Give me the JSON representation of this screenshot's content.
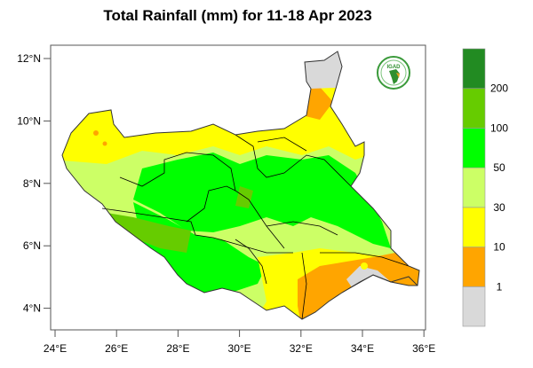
{
  "title": "Total Rainfall (mm) for 11-18 Apr 2023",
  "logo_text": "IGAD",
  "y_ticks": [
    {
      "lat": 12,
      "label": "12°N"
    },
    {
      "lat": 10,
      "label": "10°N"
    },
    {
      "lat": 8,
      "label": "8°N"
    },
    {
      "lat": 6,
      "label": "6°N"
    },
    {
      "lat": 4,
      "label": "4°N"
    }
  ],
  "x_ticks": [
    {
      "lon": 24,
      "label": "24°E"
    },
    {
      "lon": 26,
      "label": "26°E"
    },
    {
      "lon": 28,
      "label": "28°E"
    },
    {
      "lon": 30,
      "label": "30°E"
    },
    {
      "lon": 32,
      "label": "32°E"
    },
    {
      "lon": 34,
      "label": "34°E"
    },
    {
      "lon": 36,
      "label": "36°E"
    }
  ],
  "legend": {
    "colors": [
      "#d9d9d9",
      "#ffa500",
      "#ffff00",
      "#ccff66",
      "#00ff00",
      "#66cc00",
      "#228b22"
    ],
    "labels": [
      "1",
      "10",
      "30",
      "50",
      "100",
      "200"
    ]
  },
  "colors": {
    "no_data": "#d9d9d9",
    "lt1": "#d9d9d9",
    "r1_10": "#ffa500",
    "r10_30": "#ffff00",
    "r30_50": "#ccff66",
    "r50_100": "#00ff00",
    "r100_200": "#66cc00",
    "gt200": "#228b22"
  }
}
